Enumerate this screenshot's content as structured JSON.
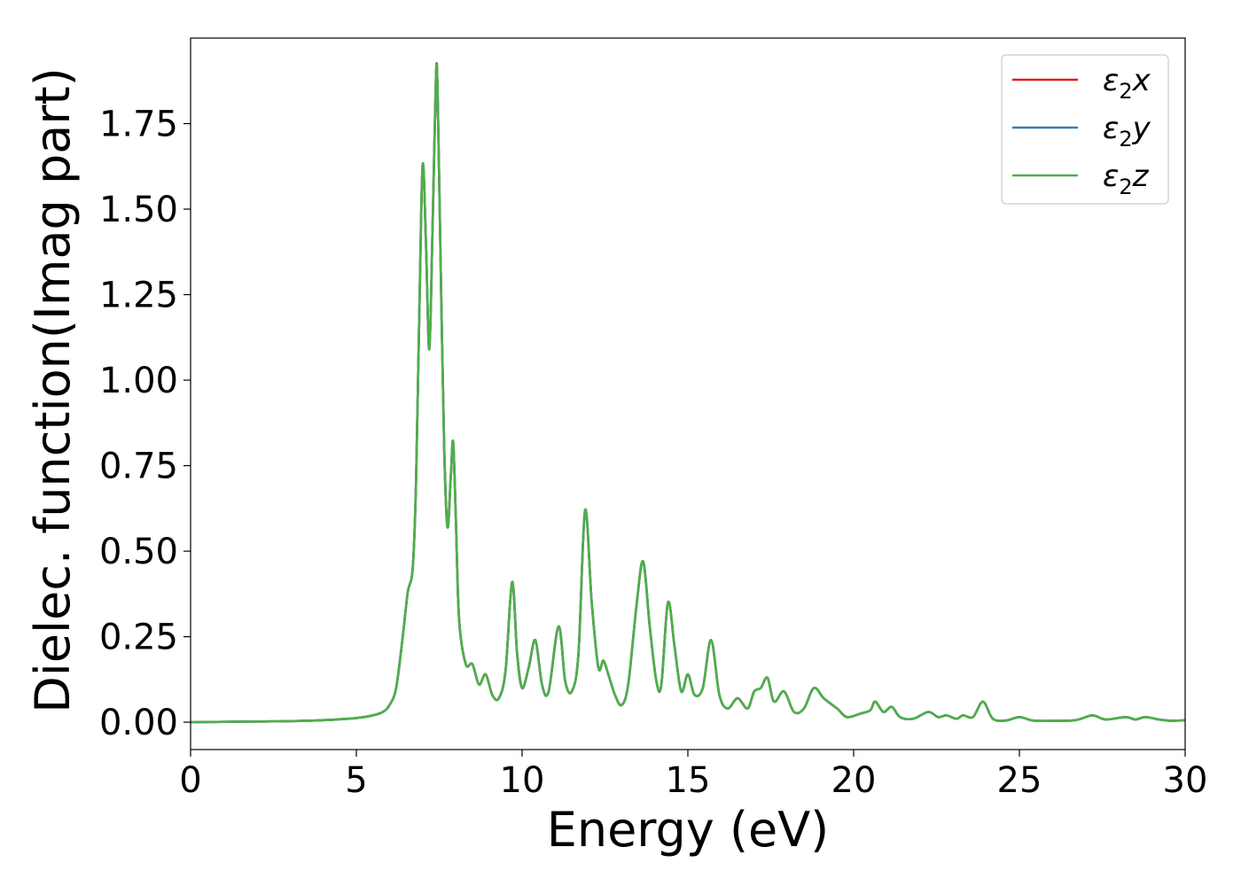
{
  "chart_data": {
    "type": "line",
    "xlabel": "Energy (eV)",
    "ylabel": "Dielec. function(Imag part)",
    "xlim": [
      0,
      30
    ],
    "ylim": [
      -0.08,
      2.0
    ],
    "xticks": [
      0,
      5,
      10,
      15,
      20,
      25,
      30
    ],
    "xtick_labels": [
      "0",
      "5",
      "10",
      "15",
      "20",
      "25",
      "30"
    ],
    "yticks": [
      0.0,
      0.25,
      0.5,
      0.75,
      1.0,
      1.25,
      1.5,
      1.75
    ],
    "ytick_labels": [
      "0.00",
      "0.25",
      "0.50",
      "0.75",
      "1.00",
      "1.25",
      "1.50",
      "1.75"
    ],
    "grid": false,
    "legend_position": "top-right",
    "series": [
      {
        "name": "ε2x",
        "name_base": "ε",
        "name_sub": "2",
        "name_var": "x",
        "color": "#e41a1c",
        "x": [
          0,
          2,
          3,
          4,
          5,
          5.5,
          5.8,
          6.0,
          6.2,
          6.4,
          6.55,
          6.7,
          6.8,
          6.9,
          7.0,
          7.1,
          7.2,
          7.3,
          7.4,
          7.45,
          7.55,
          7.65,
          7.75,
          7.85,
          7.92,
          8.0,
          8.1,
          8.3,
          8.5,
          8.7,
          8.9,
          9.1,
          9.3,
          9.5,
          9.7,
          9.85,
          10.0,
          10.2,
          10.4,
          10.6,
          10.8,
          11.1,
          11.3,
          11.5,
          11.7,
          11.9,
          12.1,
          12.3,
          12.45,
          12.6,
          12.8,
          13.0,
          13.2,
          13.45,
          13.65,
          13.85,
          14.05,
          14.2,
          14.4,
          14.6,
          14.8,
          15.0,
          15.2,
          15.45,
          15.7,
          15.95,
          16.2,
          16.5,
          16.8,
          17.0,
          17.2,
          17.4,
          17.6,
          17.9,
          18.2,
          18.5,
          18.8,
          19.1,
          19.5,
          19.8,
          20.2,
          20.5,
          20.65,
          20.9,
          21.15,
          21.4,
          21.8,
          22.25,
          22.55,
          22.8,
          23.1,
          23.3,
          23.6,
          23.9,
          24.2,
          24.6,
          25.0,
          25.4,
          26.0,
          26.7,
          27.2,
          27.6,
          28.2,
          28.5,
          28.8,
          29.2,
          29.6,
          30.0
        ],
        "y": [
          0.0,
          0.002,
          0.003,
          0.006,
          0.012,
          0.02,
          0.03,
          0.05,
          0.1,
          0.25,
          0.38,
          0.45,
          0.7,
          1.2,
          1.63,
          1.4,
          1.09,
          1.45,
          1.88,
          1.85,
          1.3,
          0.8,
          0.57,
          0.72,
          0.82,
          0.6,
          0.3,
          0.17,
          0.17,
          0.11,
          0.14,
          0.08,
          0.07,
          0.15,
          0.41,
          0.2,
          0.1,
          0.16,
          0.24,
          0.11,
          0.09,
          0.28,
          0.12,
          0.09,
          0.2,
          0.62,
          0.35,
          0.16,
          0.18,
          0.14,
          0.08,
          0.05,
          0.11,
          0.34,
          0.47,
          0.28,
          0.12,
          0.11,
          0.35,
          0.22,
          0.09,
          0.14,
          0.08,
          0.1,
          0.24,
          0.08,
          0.04,
          0.07,
          0.04,
          0.09,
          0.1,
          0.13,
          0.06,
          0.09,
          0.03,
          0.04,
          0.1,
          0.07,
          0.04,
          0.015,
          0.025,
          0.035,
          0.06,
          0.03,
          0.045,
          0.015,
          0.01,
          0.03,
          0.015,
          0.02,
          0.01,
          0.02,
          0.015,
          0.06,
          0.01,
          0.005,
          0.015,
          0.005,
          0.004,
          0.006,
          0.02,
          0.008,
          0.015,
          0.008,
          0.015,
          0.008,
          0.004,
          0.006
        ]
      },
      {
        "name": "ε2y",
        "name_base": "ε",
        "name_sub": "2",
        "name_var": "y",
        "color": "#377eb8",
        "x": [
          0,
          2,
          3,
          4,
          5,
          5.5,
          5.8,
          6.0,
          6.2,
          6.4,
          6.55,
          6.7,
          6.8,
          6.9,
          7.0,
          7.1,
          7.2,
          7.3,
          7.4,
          7.45,
          7.55,
          7.65,
          7.75,
          7.85,
          7.92,
          8.0,
          8.1,
          8.3,
          8.5,
          8.7,
          8.9,
          9.1,
          9.3,
          9.5,
          9.7,
          9.85,
          10.0,
          10.2,
          10.4,
          10.6,
          10.8,
          11.1,
          11.3,
          11.5,
          11.7,
          11.9,
          12.1,
          12.3,
          12.45,
          12.6,
          12.8,
          13.0,
          13.2,
          13.45,
          13.65,
          13.85,
          14.05,
          14.2,
          14.4,
          14.6,
          14.8,
          15.0,
          15.2,
          15.45,
          15.7,
          15.95,
          16.2,
          16.5,
          16.8,
          17.0,
          17.2,
          17.4,
          17.6,
          17.9,
          18.2,
          18.5,
          18.8,
          19.1,
          19.5,
          19.8,
          20.2,
          20.5,
          20.65,
          20.9,
          21.15,
          21.4,
          21.8,
          22.25,
          22.55,
          22.8,
          23.1,
          23.3,
          23.6,
          23.9,
          24.2,
          24.6,
          25.0,
          25.4,
          26.0,
          26.7,
          27.2,
          27.6,
          28.2,
          28.5,
          28.8,
          29.2,
          29.6,
          30.0
        ],
        "y": [
          0.0,
          0.002,
          0.003,
          0.006,
          0.012,
          0.02,
          0.03,
          0.05,
          0.1,
          0.25,
          0.38,
          0.45,
          0.7,
          1.2,
          1.63,
          1.4,
          1.09,
          1.45,
          1.88,
          1.85,
          1.3,
          0.8,
          0.57,
          0.72,
          0.82,
          0.6,
          0.3,
          0.17,
          0.17,
          0.11,
          0.14,
          0.08,
          0.07,
          0.15,
          0.41,
          0.2,
          0.1,
          0.16,
          0.24,
          0.11,
          0.09,
          0.28,
          0.12,
          0.09,
          0.2,
          0.62,
          0.35,
          0.16,
          0.18,
          0.14,
          0.08,
          0.05,
          0.11,
          0.34,
          0.47,
          0.28,
          0.12,
          0.11,
          0.35,
          0.22,
          0.09,
          0.14,
          0.08,
          0.1,
          0.24,
          0.08,
          0.04,
          0.07,
          0.04,
          0.09,
          0.1,
          0.13,
          0.06,
          0.09,
          0.03,
          0.04,
          0.1,
          0.07,
          0.04,
          0.015,
          0.025,
          0.035,
          0.06,
          0.03,
          0.045,
          0.015,
          0.01,
          0.03,
          0.015,
          0.02,
          0.01,
          0.02,
          0.015,
          0.06,
          0.01,
          0.005,
          0.015,
          0.005,
          0.004,
          0.006,
          0.02,
          0.008,
          0.015,
          0.008,
          0.015,
          0.008,
          0.004,
          0.006
        ]
      },
      {
        "name": "ε2z",
        "name_base": "ε",
        "name_sub": "2",
        "name_var": "z",
        "color": "#4daf4a",
        "x": [
          0,
          2,
          3,
          4,
          5,
          5.5,
          5.8,
          6.0,
          6.2,
          6.4,
          6.55,
          6.7,
          6.8,
          6.9,
          7.0,
          7.1,
          7.2,
          7.3,
          7.4,
          7.45,
          7.55,
          7.65,
          7.75,
          7.85,
          7.92,
          8.0,
          8.1,
          8.3,
          8.5,
          8.7,
          8.9,
          9.1,
          9.3,
          9.5,
          9.7,
          9.85,
          10.0,
          10.2,
          10.4,
          10.6,
          10.8,
          11.1,
          11.3,
          11.5,
          11.7,
          11.9,
          12.1,
          12.3,
          12.45,
          12.6,
          12.8,
          13.0,
          13.2,
          13.45,
          13.65,
          13.85,
          14.05,
          14.2,
          14.4,
          14.6,
          14.8,
          15.0,
          15.2,
          15.45,
          15.7,
          15.95,
          16.2,
          16.5,
          16.8,
          17.0,
          17.2,
          17.4,
          17.6,
          17.9,
          18.2,
          18.5,
          18.8,
          19.1,
          19.5,
          19.8,
          20.2,
          20.5,
          20.65,
          20.9,
          21.15,
          21.4,
          21.8,
          22.25,
          22.55,
          22.8,
          23.1,
          23.3,
          23.6,
          23.9,
          24.2,
          24.6,
          25.0,
          25.4,
          26.0,
          26.7,
          27.2,
          27.6,
          28.2,
          28.5,
          28.8,
          29.2,
          29.6,
          30.0
        ],
        "y": [
          0.0,
          0.002,
          0.003,
          0.006,
          0.012,
          0.02,
          0.03,
          0.05,
          0.1,
          0.25,
          0.38,
          0.45,
          0.7,
          1.2,
          1.63,
          1.4,
          1.09,
          1.45,
          1.88,
          1.85,
          1.3,
          0.8,
          0.57,
          0.72,
          0.82,
          0.6,
          0.3,
          0.17,
          0.17,
          0.11,
          0.14,
          0.08,
          0.07,
          0.15,
          0.41,
          0.2,
          0.1,
          0.16,
          0.24,
          0.11,
          0.09,
          0.28,
          0.12,
          0.09,
          0.2,
          0.62,
          0.35,
          0.16,
          0.18,
          0.14,
          0.08,
          0.05,
          0.11,
          0.34,
          0.47,
          0.28,
          0.12,
          0.11,
          0.35,
          0.22,
          0.09,
          0.14,
          0.08,
          0.1,
          0.24,
          0.08,
          0.04,
          0.07,
          0.04,
          0.09,
          0.1,
          0.13,
          0.06,
          0.09,
          0.03,
          0.04,
          0.1,
          0.07,
          0.04,
          0.015,
          0.025,
          0.035,
          0.06,
          0.03,
          0.045,
          0.015,
          0.01,
          0.03,
          0.015,
          0.02,
          0.01,
          0.02,
          0.015,
          0.06,
          0.01,
          0.005,
          0.015,
          0.005,
          0.004,
          0.006,
          0.02,
          0.008,
          0.015,
          0.008,
          0.015,
          0.008,
          0.004,
          0.006
        ]
      }
    ]
  }
}
